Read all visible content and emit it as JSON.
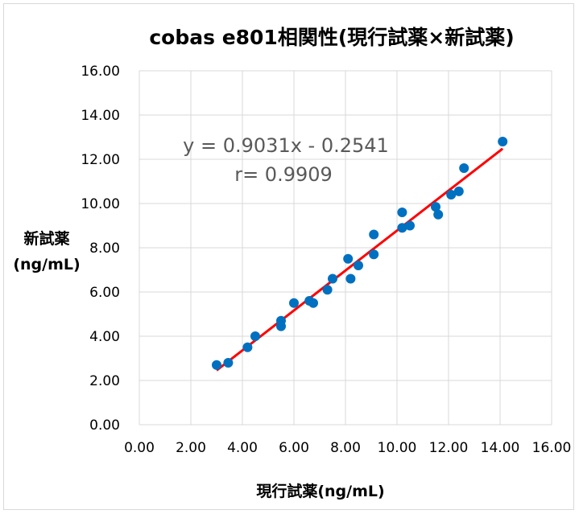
{
  "chart_data": {
    "type": "scatter",
    "title": "cobas e801相関性(現行試薬×新試薬)",
    "xlabel": "現行試薬(ng/mL)",
    "ylabel_lines": [
      "新試薬",
      "(ng/mL)"
    ],
    "xlim": [
      0,
      16
    ],
    "ylim": [
      0,
      16
    ],
    "x_ticks": [
      "0.00",
      "2.00",
      "4.00",
      "6.00",
      "8.00",
      "10.00",
      "12.00",
      "14.00",
      "16.00"
    ],
    "y_ticks": [
      "0.00",
      "2.00",
      "4.00",
      "6.00",
      "8.00",
      "10.00",
      "12.00",
      "14.00",
      "16.00"
    ],
    "grid": true,
    "legend": "none",
    "point_color": "#0070c0",
    "trendline_color": "#ff0000",
    "equation": "y = 0.9031x - 0.2541",
    "correlation": "r= 0.9909",
    "trendline": {
      "slope": 0.9031,
      "intercept": -0.2541,
      "x_range": [
        3.0,
        14.1
      ]
    },
    "points": [
      {
        "x": 3.0,
        "y": 2.7
      },
      {
        "x": 3.45,
        "y": 2.8
      },
      {
        "x": 4.2,
        "y": 3.5
      },
      {
        "x": 4.5,
        "y": 4.0
      },
      {
        "x": 5.5,
        "y": 4.7
      },
      {
        "x": 5.5,
        "y": 4.45
      },
      {
        "x": 6.0,
        "y": 5.5
      },
      {
        "x": 6.6,
        "y": 5.6
      },
      {
        "x": 6.75,
        "y": 5.5
      },
      {
        "x": 7.3,
        "y": 6.1
      },
      {
        "x": 7.5,
        "y": 6.6
      },
      {
        "x": 8.1,
        "y": 7.5
      },
      {
        "x": 8.2,
        "y": 6.6
      },
      {
        "x": 8.5,
        "y": 7.2
      },
      {
        "x": 9.1,
        "y": 8.6
      },
      {
        "x": 9.1,
        "y": 7.7
      },
      {
        "x": 10.2,
        "y": 9.6
      },
      {
        "x": 10.2,
        "y": 8.9
      },
      {
        "x": 10.5,
        "y": 9.0
      },
      {
        "x": 11.5,
        "y": 9.85
      },
      {
        "x": 11.6,
        "y": 9.5
      },
      {
        "x": 12.1,
        "y": 10.4
      },
      {
        "x": 12.4,
        "y": 10.55
      },
      {
        "x": 12.6,
        "y": 11.6
      },
      {
        "x": 14.1,
        "y": 12.8
      }
    ]
  }
}
